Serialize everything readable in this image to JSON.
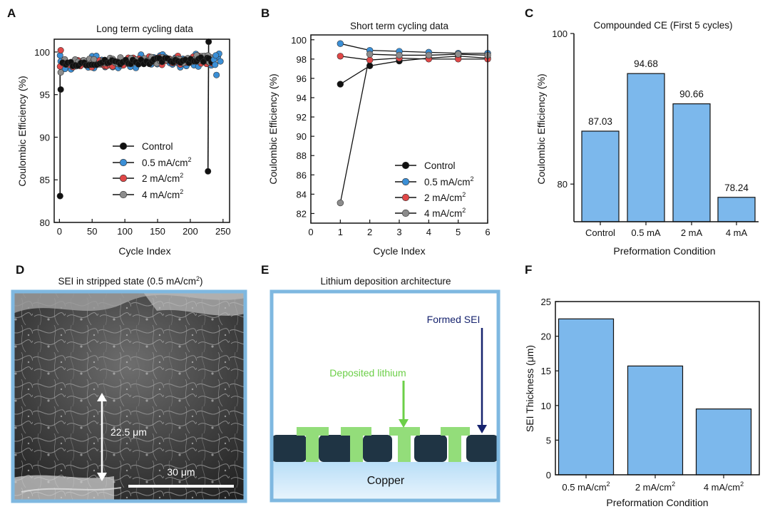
{
  "colors": {
    "control": "#111111",
    "r05": "#3b8fd6",
    "r2": "#e04747",
    "r4": "#8c8c8c",
    "bar_fill": "#7cb8ec",
    "frame": "#7fb8e0",
    "sei_dark": "#1f3444",
    "lithium": "#93dd7a",
    "arrow_green": "#6ccf48",
    "arrow_navy": "#16236e"
  },
  "panels": {
    "A": {
      "letter": "A",
      "title": "Long term cycling data",
      "xlabel": "Cycle Index",
      "ylabel": "Coulombic Efficiency (%)"
    },
    "B": {
      "letter": "B",
      "title": "Short term cycling data",
      "xlabel": "Cycle Index",
      "ylabel": "Coulombic Efficiency (%)"
    },
    "C": {
      "letter": "C",
      "title": "Compounded CE (First 5 cycles)",
      "xlabel": "Preformation Condition",
      "ylabel": "Coulombic Efficiency (%)"
    },
    "D": {
      "letter": "D",
      "title_main": "SEI in stripped state (0.5 mA/cm",
      "title_sup": "2",
      "title_end": ")",
      "thickness_label": "22.5 μm",
      "scale_label": "30 μm"
    },
    "E": {
      "letter": "E",
      "title": "Lithium deposition architecture",
      "label_sei": "Formed SEI",
      "label_li": "Deposited lithium",
      "label_cu": "Copper"
    },
    "F": {
      "letter": "F",
      "xlabel": "Preformation Condition",
      "ylabel": "SEI Thickness (μm)"
    }
  },
  "legend": {
    "control": "Control",
    "r05": "0.5 mA/cm",
    "r2": "2 mA/cm",
    "r4": "4 mA/cm",
    "sup": "2"
  },
  "chart_data": [
    {
      "panel": "A",
      "type": "scatter",
      "title": "Long term cycling data",
      "xlabel": "Cycle Index",
      "ylabel": "Coulombic Efficiency (%)",
      "xlim": [
        -8,
        260
      ],
      "ylim": [
        80,
        101.5
      ],
      "xticks": [
        0,
        50,
        100,
        150,
        200,
        250
      ],
      "yticks": [
        80,
        85,
        90,
        95,
        100
      ],
      "series": [
        {
          "name": "Control",
          "start": [
            [
              1,
              83.1
            ],
            [
              2,
              95.6
            ]
          ],
          "band": [
            98.3,
            99.3
          ],
          "end": [
            [
              227,
              86.0
            ],
            [
              228,
              101.2
            ]
          ]
        },
        {
          "name": "0.5 mA/cm2",
          "start": [
            [
              1,
              99.6
            ],
            [
              2,
              98.9
            ]
          ],
          "band": [
            97.8,
            99.8
          ],
          "end": [
            [
              240,
              97.3
            ],
            [
              242,
              99.4
            ]
          ]
        },
        {
          "name": "2 mA/cm2",
          "start": [
            [
              1,
              98.3
            ],
            [
              2,
              100.2
            ]
          ],
          "band": [
            98.1,
            99.5
          ],
          "end": [
            [
              225,
              98.6
            ],
            [
              230,
              99.2
            ]
          ]
        },
        {
          "name": "4 mA/cm2",
          "start": [
            [
              1,
              83.1
            ],
            [
              2,
              97.6
            ]
          ],
          "band": [
            98.3,
            99.5
          ],
          "end": [
            [
              227,
              99.6
            ],
            [
              229,
              98.8
            ]
          ]
        }
      ]
    },
    {
      "panel": "B",
      "type": "line",
      "title": "Short term cycling data",
      "xlabel": "Cycle Index",
      "ylabel": "Coulombic Efficiency (%)",
      "xlim": [
        0,
        6
      ],
      "ylim": [
        81,
        100.5
      ],
      "xticks": [
        0,
        1,
        2,
        3,
        4,
        5,
        6
      ],
      "yticks": [
        82,
        84,
        86,
        88,
        90,
        92,
        94,
        96,
        98,
        100
      ],
      "x": [
        1,
        2,
        3,
        4,
        5,
        6
      ],
      "series": [
        {
          "name": "Control",
          "values": [
            95.4,
            97.3,
            97.8,
            98.1,
            98.3,
            98.1
          ]
        },
        {
          "name": "0.5 mA/cm2",
          "values": [
            99.6,
            98.9,
            98.8,
            98.7,
            98.6,
            98.6
          ]
        },
        {
          "name": "2 mA/cm2",
          "values": [
            98.3,
            97.9,
            98.1,
            98.0,
            98.0,
            98.0
          ]
        },
        {
          "name": "4 mA/cm2",
          "values": [
            83.1,
            98.5,
            98.4,
            98.4,
            98.5,
            98.4
          ]
        }
      ]
    },
    {
      "panel": "C",
      "type": "bar",
      "title": "Compounded CE (First 5 cycles)",
      "xlabel": "Preformation Condition",
      "ylabel": "Coulombic Efficiency (%)",
      "ylim": [
        75,
        100
      ],
      "yticks": [
        80,
        100
      ],
      "categories": [
        "Control",
        "0.5 mA",
        "2 mA",
        "4 mA"
      ],
      "values": [
        87.03,
        94.68,
        90.66,
        78.24
      ],
      "value_labels": [
        "87.03",
        "94.68",
        "90.66",
        "78.24"
      ]
    },
    {
      "panel": "F",
      "type": "bar",
      "xlabel": "Preformation Condition",
      "ylabel": "SEI Thickness (μm)",
      "ylim": [
        0,
        25
      ],
      "yticks": [
        0,
        5,
        10,
        15,
        20,
        25
      ],
      "categories": [
        "0.5 mA/cm",
        "2 mA/cm",
        "4 mA/cm"
      ],
      "category_sup": "2",
      "values": [
        22.5,
        15.7,
        9.5
      ]
    }
  ]
}
